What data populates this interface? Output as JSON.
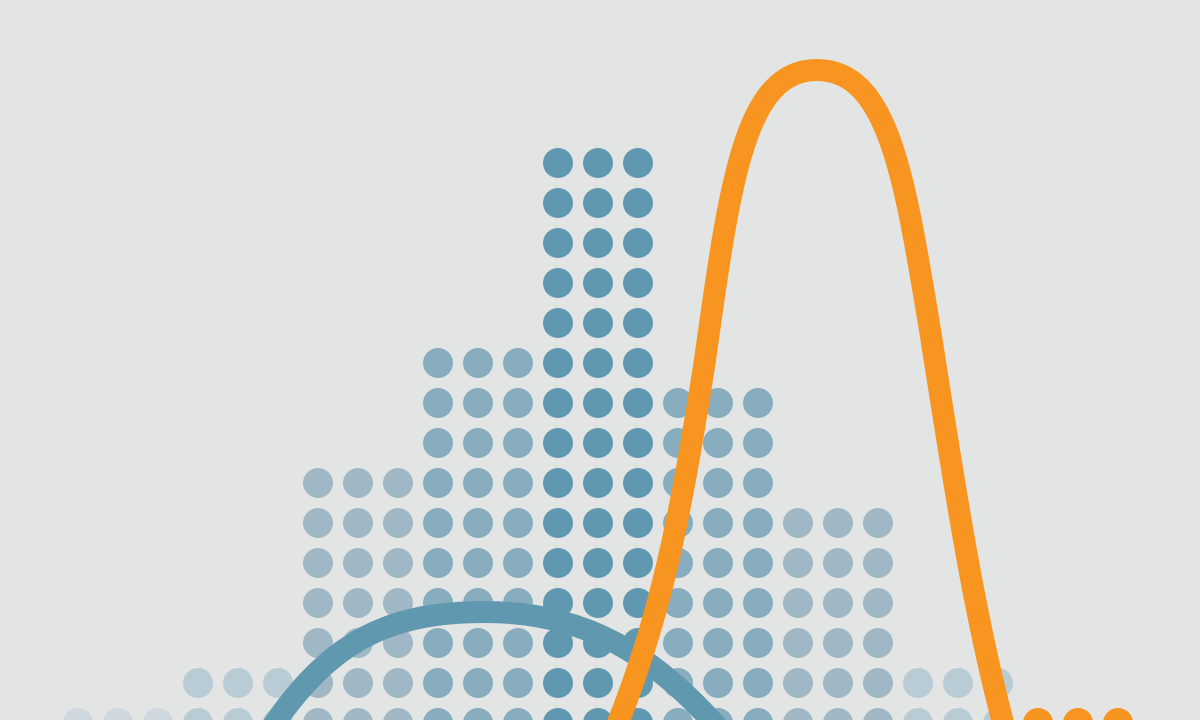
{
  "illustration": {
    "background_color": "#e3e4e4",
    "dot_columns": {
      "counts": [
        1,
        1,
        1,
        2,
        2,
        2,
        7,
        7,
        7,
        10,
        10,
        10,
        15,
        15,
        15,
        9,
        9,
        9,
        6,
        6,
        6,
        2,
        2,
        2,
        1,
        1
      ],
      "colors": {
        "lightest": "#cdd7dd",
        "light": "#b9cbd4",
        "mid_light": "#a0b8c6",
        "mid": "#88adbf",
        "dark": "#6098af",
        "orange_dots": "#f79520"
      },
      "group_tones": [
        "lightest",
        "light",
        "mid_light",
        "mid",
        "dark",
        "mid",
        "mid_light",
        "light",
        "lightest"
      ]
    },
    "curves": {
      "blue_curve_color": "#6098af",
      "orange_curve_color": "#f79520"
    }
  }
}
